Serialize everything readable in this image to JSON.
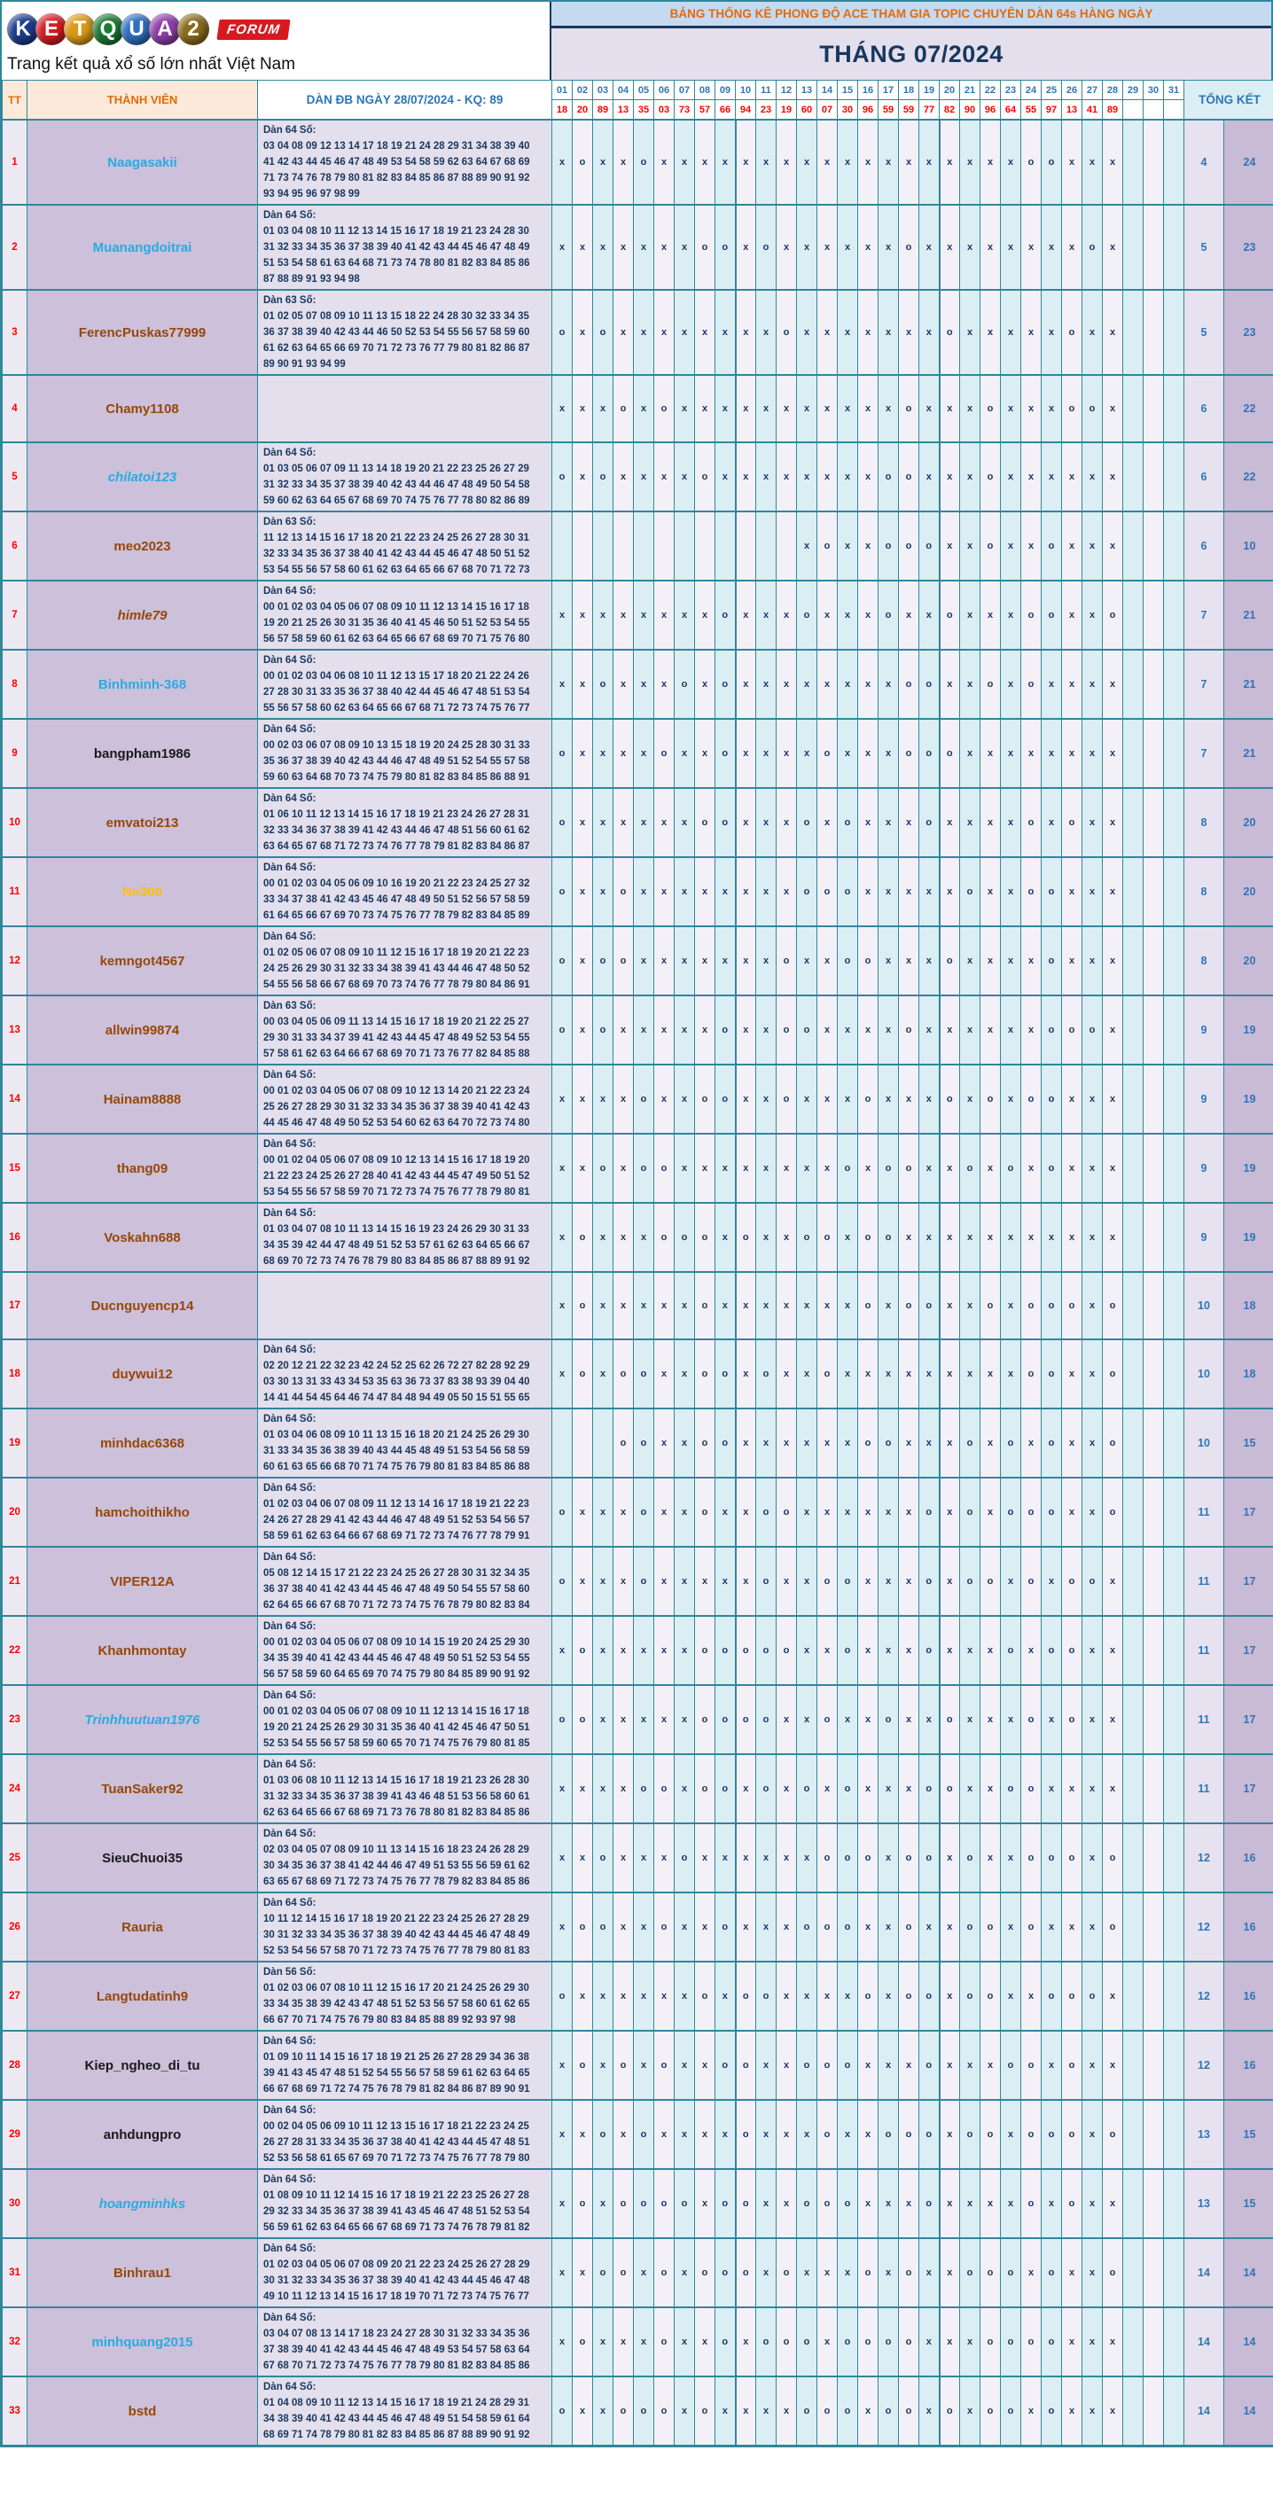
{
  "colors": {
    "border_teal": "#31869B",
    "header_peach": "#FDE9D9",
    "title_bar_blue": "#C5D9F1",
    "title_text_orange": "#E26B0A",
    "lavender": "#E4DFEC",
    "member_purple": "#CCC0DA",
    "day_col_cyan": "#DAEEF3",
    "navy_text": "#17375E",
    "blue_number": "#2E75B6",
    "kq_red": "#FF0000",
    "badge_red": "#D71920"
  },
  "banner": {
    "logo_letters": [
      "K",
      "E",
      "T",
      "Q",
      "U",
      "A",
      "2"
    ],
    "logo_ball_colors": [
      "#1d3c8f",
      "#d61c24",
      "#d89a17",
      "#1d7a35",
      "#2f6fc2",
      "#8f3fa8",
      "#8a6d1d"
    ],
    "badge": "FORUM",
    "tagline": "Trang kết quả xổ số lớn nhất Việt Nam",
    "title": "BẢNG THỐNG KÊ PHONG ĐỘ ACE THAM GIA TOPIC CHUYÊN DÀN 64s HÀNG NGÀY",
    "month_title": "THÁNG 07/2024"
  },
  "table": {
    "col_tt": "TT",
    "col_member": "THÀNH VIÊN",
    "col_dan": "DÀN ĐB NGÀY 28/07/2024 - KQ: 89",
    "col_total": "TỔNG KẾT",
    "days": [
      "01",
      "02",
      "03",
      "04",
      "05",
      "06",
      "07",
      "08",
      "09",
      "10",
      "11",
      "12",
      "13",
      "14",
      "15",
      "16",
      "17",
      "18",
      "19",
      "20",
      "21",
      "22",
      "23",
      "24",
      "25",
      "26",
      "27",
      "28",
      "29",
      "30",
      "31"
    ],
    "kq": [
      "18",
      "20",
      "89",
      "13",
      "35",
      "03",
      "73",
      "57",
      "66",
      "94",
      "23",
      "19",
      "60",
      "07",
      "30",
      "96",
      "59",
      "59",
      "77",
      "82",
      "90",
      "96",
      "64",
      "55",
      "97",
      "13",
      "41",
      "89",
      "",
      "",
      ""
    ],
    "rows": [
      {
        "tt": "1",
        "name": "Naagasakii",
        "style": "cyan",
        "dan_label": "Dàn 64 Số:",
        "dan_lines": [
          "03 04 08 09 12 13 14 17 18 19 21 24 28 29 31 34 38 39 40",
          "41 42 43 44 45 46 47 48 49 53 54 58 59 62 63 64 67 68 69",
          "71 73 74 76 78 79 80 81 82 83 84 85 86 87 88 89 90 91 92",
          "93 94 95 96 97 98 99"
        ],
        "marks": "xoxxoxxxxxxxxxxxxxxxxxxooxxx---",
        "total_o": "4",
        "total_x": "24"
      },
      {
        "tt": "2",
        "name": "Muanangdoitrai",
        "style": "cyan",
        "dan_label": "Dàn 64 Số:",
        "dan_lines": [
          "01 03 04 08 10 11 12 13 14 15 16 17 18 19 21 23 24 28 30",
          "31 32 33 34 35 36 37 38 39 40 41 42 43 44 45 46 47 48 49",
          "51 53 54 58 61 63 64 68 71 73 74 78 80 81 82 83 84 85 86",
          "87 88 89 91 93 94 98"
        ],
        "marks": "xxxxxxxooxoxxxxxxoxxxxxxxxox---",
        "total_o": "5",
        "total_x": "23"
      },
      {
        "tt": "3",
        "name": "FerencPuskas77999",
        "style": "brown",
        "dan_label": "Dàn 63 Số:",
        "dan_lines": [
          "01 02 05 07 08 09 10 11 13 15 18 22 24 28 30 32 33 34 35",
          "36 37 38 39 40 42 43 44 46 50 52 53 54 55 56 57 58 59 60",
          "61 62 63 64 65 66 69 70 71 72 73 76 77 79 80 81 82 86 87",
          "89 90 91 93 94 99"
        ],
        "marks": "oxoxxxxxxxxoxxxxxxxoxxxxxoxx---",
        "total_o": "5",
        "total_x": "23"
      },
      {
        "tt": "4",
        "name": "Chamy1108",
        "style": "brown",
        "dan_label": "",
        "dan_lines": [],
        "marks": "xxxoxoxxxxxxxxxxxoxxxoxxxoox---",
        "total_o": "6",
        "total_x": "22"
      },
      {
        "tt": "5",
        "name": "chilatoi123",
        "style": "cyan italic",
        "dan_label": "Dàn 64 Số:",
        "dan_lines": [
          "01 03 05 06 07 09 11 13 14 18 19 20 21 22 23 25 26 27 29",
          "31 32 33 34 35 37 38 39 40 42 43 44 46 47 48 49 50 54 58",
          "59 60 62 63 64 65 67 68 69 70 74 75 76 77 78 80 82 86 89"
        ],
        "marks": "oxoxxxxoxxxxxxxxooxxxoxxxxxx---",
        "total_o": "6",
        "total_x": "22"
      },
      {
        "tt": "6",
        "name": "meo2023",
        "style": "brown",
        "dan_label": "Dàn 63 Số:",
        "dan_lines": [
          "11 12 13 14 15 16 17 18 20 21 22 23 24 25 26 27 28 30 31",
          "32 33 34 35 36 37 38 40 41 42 43 44 45 46 47 48 50 51 52",
          "53 54 55 56 57 58 60 61 62 63 64 65 66 67 68 70 71 72 73"
        ],
        "marks": "------------xoxxoooxxoxxoxxx---",
        "total_o": "6",
        "total_x": "10"
      },
      {
        "tt": "7",
        "name": "himle79",
        "style": "brown italic",
        "dan_label": "Dàn 64 Số:",
        "dan_lines": [
          "00 01 02 03 04 05 06 07 08 09 10 11 12 13 14 15 16 17 18",
          "19 20 21 25 26 30 31 35 36 40 41 45 46 50 51 52 53 54 55",
          "56 57 58 59 60 61 62 63 64 65 66 67 68 69 70 71 75 76 80"
        ],
        "marks": "xxxxxxxxoxxxoxxxoxxoxxxooxxo---",
        "total_o": "7",
        "total_x": "21"
      },
      {
        "tt": "8",
        "name": "Binhminh-368",
        "style": "cyan",
        "dan_label": "Dàn 64 Số:",
        "dan_lines": [
          "00 01 02 03 04 06 08 10 11 12 13 15 17 18 20 21 22 24 26",
          "27 28 30 31 33 35 36 37 38 40 42 44 45 46 47 48 51 53 54",
          "55 56 57 58 60 62 63 64 65 66 67 68 71 72 73 74 75 76 77"
        ],
        "marks": "xxoxxxoxoxxxxxxxxooxxoxoxxxx---",
        "total_o": "7",
        "total_x": "21"
      },
      {
        "tt": "9",
        "name": "bangpham1986",
        "style": "black",
        "dan_label": "Dàn 64 Số:",
        "dan_lines": [
          "00 02 03 06 07 08 09 10 13 15 18 19 20 24 25 28 30 31 33",
          "35 36 37 38 39 40 42 43 44 46 47 48 49 51 52 54 55 57 58",
          "59 60 63 64 68 70 73 74 75 79 80 81 82 83 84 85 86 88 91"
        ],
        "marks": "oxxxxoxxoxxxxoxxxoooxxxxxxxx---",
        "total_o": "7",
        "total_x": "21"
      },
      {
        "tt": "10",
        "name": "emvatoi213",
        "style": "brown",
        "dan_label": "Dàn 64 Số:",
        "dan_lines": [
          "01 06 10 11 12 13 14 15 16 17 18 19 21 23 24 26 27 28 31",
          "32 33 34 36 37 38 39 41 42 43 44 46 47 48 51 56 60 61 62",
          "63 64 65 67 68 71 72 73 74 76 77 78 79 81 82 83 84 86 87"
        ],
        "marks": "oxxxxxxooxxxoxoxxxoxxxxoxoxx---",
        "total_o": "8",
        "total_x": "20"
      },
      {
        "tt": "11",
        "name": "Nn300",
        "style": "orange",
        "dan_label": "Dàn 64 Số:",
        "dan_lines": [
          "00 01 02 03 04 05 06 09 10 16 19 20 21 22 23 24 25 27 32",
          "33 34 37 38 41 42 43 45 46 47 48 49 50 51 52 56 57 58 59",
          "61 64 65 66 67 69 70 73 74 75 76 77 78 79 82 83 84 85 89"
        ],
        "marks": "oxxoxxxxxxxxoooxxxxxoxxooxxx---",
        "total_o": "8",
        "total_x": "20"
      },
      {
        "tt": "12",
        "name": "kemngot4567",
        "style": "brown",
        "dan_label": "Dàn 64 Số:",
        "dan_lines": [
          "01 02 05 06 07 08 09 10 11 12 15 16 17 18 19 20 21 22 23",
          "24 25 26 29 30 31 32 33 34 38 39 41 43 44 46 47 48 50 52",
          "54 55 56 58 66 67 68 69 70 73 74 76 77 78 79 80 84 86 91"
        ],
        "marks": "oxooxxxxxxxoxxooxxxoxxxxoxxx---",
        "total_o": "8",
        "total_x": "20"
      },
      {
        "tt": "13",
        "name": "allwin99874",
        "style": "brown",
        "dan_label": "Dàn 63 Số:",
        "dan_lines": [
          "00 03 04 05 06 09 11 13 14 15 16 17 18 19 20 21 22 25 27",
          "29 30 31 33 34 37 39 41 42 43 44 45 47 48 49 52 53 54 55",
          "57 58 61 62 63 64 66 67 68 69 70 71 73 76 77 82 84 85 88"
        ],
        "marks": "oxoxxxxxoxxooxxxxoxxxxxxooox---",
        "total_o": "9",
        "total_x": "19"
      },
      {
        "tt": "14",
        "name": "Hainam8888",
        "style": "brown",
        "dan_label": "Dàn 64 Số:",
        "dan_lines": [
          "00 01 02 03 04 05 06 07 08 09 10 12 13 14 20 21 22 23 24",
          "25 26 27 28 29 30 31 32 33 34 35 36 37 38 39 40 41 42 43",
          "44 45 46 47 48 49 50 52 53 54 60 62 63 64 70 72 73 74 80"
        ],
        "marks": "xxxxoxxooxxoxxxoxxxoxoxooxxx---",
        "total_o": "9",
        "total_x": "19"
      },
      {
        "tt": "15",
        "name": "thang09",
        "style": "brown",
        "dan_label": "Dàn 64 Số:",
        "dan_lines": [
          "00 01 02 04 05 06 07 08 09 10 12 13 14 15 16 17 18 19 20",
          "21 22 23 24 25 26 27 28 40 41 42 43 44 45 47 49 50 51 52",
          "53 54 55 56 57 58 59 70 71 72 73 74 75 76 77 78 79 80 81"
        ],
        "marks": "xxoxooxxxxxxxxoxooxxoxoxoxxx---",
        "total_o": "9",
        "total_x": "19"
      },
      {
        "tt": "16",
        "name": "Voskahn688",
        "style": "brown",
        "dan_label": "Dàn 64 Số:",
        "dan_lines": [
          "01 03 04 07 08 10 11 13 14 15 16 19 23 24 26 29 30 31 33",
          "34 35 39 42 44 47 48 49 51 52 53 57 61 62 63 64 65 66 67",
          "68 69 70 72 73 74 76 78 79 80 83 84 85 86 87 88 89 91 92"
        ],
        "marks": "xoxxxoooxoxxooxooxxxxxxxxxxx---",
        "total_o": "9",
        "total_x": "19"
      },
      {
        "tt": "17",
        "name": "Ducnguyencp14",
        "style": "brown",
        "dan_label": "",
        "dan_lines": [],
        "marks": "xoxxxxxoxxxxxxxoxooxxoxoooxo---",
        "total_o": "10",
        "total_x": "18"
      },
      {
        "tt": "18",
        "name": "duywui12",
        "style": "brown",
        "dan_label": "Dàn 64 Số:",
        "dan_lines": [
          "02 20 12 21 22 32 23 42 24 52 25 62 26 72 27 82 28 92 29",
          "03 30 13 31 33 43 34 53 35 63 36 73 37 83 38 93 39 04 40",
          "14 41 44 54 45 64 46 74 47 84 48 94 49 05 50 15 51 55 65"
        ],
        "marks": "xoxooxxooxoxxoxxxxxxxxxooxxo---",
        "total_o": "10",
        "total_x": "18"
      },
      {
        "tt": "19",
        "name": "minhdac6368",
        "style": "brown",
        "dan_label": "Dàn 64 Số:",
        "dan_lines": [
          "01 03 04 06 08 09 10 11 13 15 16 18 20 21 24 25 26 29 30",
          "31 33 34 35 36 38 39 40 43 44 45 48 49 51 53 54 56 58 59",
          "60 61 63 65 66 68 70 71 74 75 76 79 80 81 83 84 85 86 88"
        ],
        "marks": "---ooxxooxxxxxxooxxxoxoxoxxo---",
        "total_o": "10",
        "total_x": "15"
      },
      {
        "tt": "20",
        "name": "hamchoithikho",
        "style": "brown",
        "dan_label": "Dàn 64 Số:",
        "dan_lines": [
          "01 02 03 04 06 07 08 09 11 12 13 14 16 17 18 19 21 22 23",
          "24 26 27 28 29 41 42 43 44 46 47 48 49 51 52 53 54 56 57",
          "58 59 61 62 63 64 66 67 68 69 71 72 73 74 76 77 78 79 91"
        ],
        "marks": "oxxxoxxoxxooxxxxxxoxoxoooxxo---",
        "total_o": "11",
        "total_x": "17"
      },
      {
        "tt": "21",
        "name": "VIPER12A",
        "style": "brown",
        "dan_label": "Dàn 64 Số:",
        "dan_lines": [
          "05 08 12 14 15 17 21 22 23 24 25 26 27 28 30 31 32 34 35",
          "36 37 38 40 41 42 43 44 45 46 47 48 49 50 54 55 57 58 60",
          "62 64 65 66 67 68 70 71 72 73 74 75 76 78 79 80 82 83 84"
        ],
        "marks": "oxxxoxxxxxoxxooxxxoxooxoxoox---",
        "total_o": "11",
        "total_x": "17"
      },
      {
        "tt": "22",
        "name": "Khanhmontay",
        "style": "brown",
        "dan_label": "Dàn 64 Số:",
        "dan_lines": [
          "00 01 02 03 04 05 06 07 08 09 10 14 15 19 20 24 25 29 30",
          "34 35 39 40 41 42 43 44 45 46 47 48 49 50 51 52 53 54 55",
          "56 57 58 59 60 64 65 69 70 74 75 79 80 84 85 89 90 91 92"
        ],
        "marks": "xoxxxxxoooooxxoxxxoxxxoxooxx---",
        "total_o": "11",
        "total_x": "17"
      },
      {
        "tt": "23",
        "name": "Trinhhuutuan1976",
        "style": "cyan italic",
        "dan_label": "Dàn 64 Số:",
        "dan_lines": [
          "00 01 02 03 04 05 06 07 08 09 10 11 12 13 14 15 16 17 18",
          "19 20 21 24 25 26 29 30 31 35 36 40 41 42 45 46 47 50 51",
          "52 53 54 55 56 57 58 59 60 65 70 71 74 75 76 79 80 81 85"
        ],
        "marks": "ooxxxxxooooxxoxxoxxoxxxoxoxx---",
        "total_o": "11",
        "total_x": "17"
      },
      {
        "tt": "24",
        "name": "TuanSaker92",
        "style": "brown",
        "dan_label": "Dàn 64 Số:",
        "dan_lines": [
          "01 03 06 08 10 11 12 13 14 15 16 17 18 19 21 23 26 28 30",
          "31 32 33 34 35 36 37 38 39 41 43 46 48 51 53 56 58 60 61",
          "62 63 64 65 66 67 68 69 71 73 76 78 80 81 82 83 84 85 86"
        ],
        "marks": "xxxxooxooxoxoxoxxxooxxooxxxx---",
        "total_o": "11",
        "total_x": "17"
      },
      {
        "tt": "25",
        "name": "SieuChuoi35",
        "style": "black",
        "dan_label": "Dàn 64 Số:",
        "dan_lines": [
          "02 03 04 05 07 08 09 10 11 13 14 15 16 18 23 24 26 28 29",
          "30 34 35 36 37 38 41 42 44 46 47 49 51 53 55 56 59 61 62",
          "63 65 67 68 69 71 72 73 74 75 76 77 78 79 82 83 84 85 86"
        ],
        "marks": "xxoxxxoxxxxxxoooxooxoxxoooxo---",
        "total_o": "12",
        "total_x": "16"
      },
      {
        "tt": "26",
        "name": "Rauria",
        "style": "brown",
        "dan_label": "Dàn 64 Số:",
        "dan_lines": [
          "10 11 12 14 15 16 17 18 19 20 21 22 23 24 25 26 27 28 29",
          "30 31 32 33 34 35 36 37 38 39 40 42 43 44 45 46 47 48 49",
          "52 53 54 56 57 58 70 71 72 73 74 75 76 77 78 79 80 81 83"
        ],
        "marks": "xooxxoxxoxxxoooxxoxxooxoxxxo---",
        "total_o": "12",
        "total_x": "16"
      },
      {
        "tt": "27",
        "name": "Langtudatinh9",
        "style": "brown",
        "dan_label": "Dàn 56 Số:",
        "dan_lines": [
          "01 02 03 06 07 08 10 11 12 15 16 17 20 21 24 25 26 29 30",
          "33 34 35 38 39 42 43 47 48 51 52 53 56 57 58 60 61 62 65",
          "66 67 70 71 74 75 76 79 80 83 84 85 88 89 92 93 97 98"
        ],
        "marks": "oxxxxxxoxooxxxxoxooxooxxooox---",
        "total_o": "12",
        "total_x": "16"
      },
      {
        "tt": "28",
        "name": "Kiep_ngheo_di_tu",
        "style": "black",
        "dan_label": "Dàn 64 Số:",
        "dan_lines": [
          "01 09 10 11 14 15 16 17 18 19 21 25 26 27 28 29 34 36 38",
          "39 41 43 45 47 48 51 52 54 55 56 57 58 59 61 62 63 64 65",
          "66 67 68 69 71 72 74 75 76 78 79 81 82 84 86 87 89 90 91"
        ],
        "marks": "xoxoxoxxooxxoooxxxoxxxooxoxx---",
        "total_o": "12",
        "total_x": "16"
      },
      {
        "tt": "29",
        "name": "anhdungpro",
        "style": "black",
        "dan_label": "Dàn 64 Số:",
        "dan_lines": [
          "00 02 04 05 06 09 10 11 12 13 15 16 17 18 21 22 23 24 25",
          "26 27 28 31 33 34 35 36 37 38 40 41 42 43 44 45 47 48 51",
          "52 53 56 58 61 65 67 69 70 71 72 73 74 75 76 77 78 79 80"
        ],
        "marks": "xxoxoxxxxoxxxoxxoooxooxoooxo---",
        "total_o": "13",
        "total_x": "15"
      },
      {
        "tt": "30",
        "name": "hoangminhks",
        "style": "cyan italic",
        "dan_label": "Dàn 64 Số:",
        "dan_lines": [
          "01 08 09 10 11 12 14 15 16 17 18 19 21 22 23 25 26 27 28",
          "29 32 33 34 35 36 37 38 39 41 43 45 46 47 48 51 52 53 54",
          "56 59 61 62 63 64 65 66 67 68 69 71 73 74 76 78 79 81 82"
        ],
        "marks": "xoxooooxooxxoooxxxoxxxxoxoxx---",
        "total_o": "13",
        "total_x": "15"
      },
      {
        "tt": "31",
        "name": "Binhrau1",
        "style": "brown",
        "dan_label": "Dàn 64 Số:",
        "dan_lines": [
          "01 02 03 04 05 06 07 08 09 20 21 22 23 24 25 26 27 28 29",
          "30 31 32 33 34 35 36 37 38 39 40 41 42 43 44 45 46 47 48",
          "49 10 11 12 13 14 15 16 17 18 19 70 71 72 73 74 75 76 77"
        ],
        "marks": "xxooxoxoooxoxxxoxoxxoooxoxxo---",
        "total_o": "14",
        "total_x": "14"
      },
      {
        "tt": "32",
        "name": "minhquang2015",
        "style": "cyan",
        "dan_label": "Dàn 64 Số:",
        "dan_lines": [
          "03 04 07 08 13 14 17 18 23 24 27 28 30 31 32 33 34 35 36",
          "37 38 39 40 41 42 43 44 45 46 47 48 49 53 54 57 58 63 64",
          "67 68 70 71 72 73 74 75 76 77 78 79 80 81 82 83 84 85 86"
        ],
        "marks": "xoxxxoxxoxoooxooooxxxooooxxx---",
        "total_o": "14",
        "total_x": "14"
      },
      {
        "tt": "33",
        "name": "bstd",
        "style": "brown",
        "dan_label": "Dàn 64 Số:",
        "dan_lines": [
          "01 04 08 09 10 11 12 13 14 15 16 17 18 19 21 24 28 29 31",
          "34 38 39 40 41 42 43 44 45 46 47 48 49 51 54 58 59 61 64",
          "68 69 71 74 78 79 80 81 82 83 84 85 86 87 88 89 90 91 92"
        ],
        "marks": "oxxoooxoxxxxoooxooxoxooxoxxx---",
        "total_o": "14",
        "total_x": "14"
      }
    ]
  }
}
